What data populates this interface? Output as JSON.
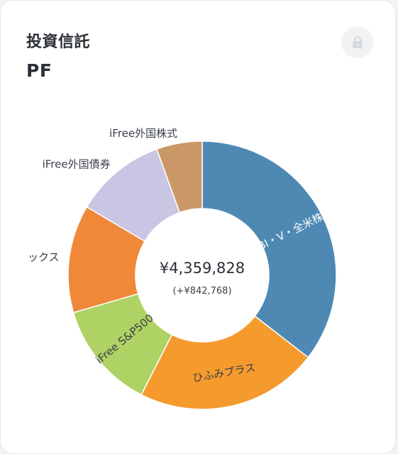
{
  "header": {
    "title": "投資信託",
    "subtitle": "PF"
  },
  "icons": {
    "lock": "lock-icon"
  },
  "summary": {
    "total": "¥4,359,828",
    "diff": "(+¥842,768)"
  },
  "colors": {
    "slice_blue": "#4e89b4",
    "slice_orange": "#f59b2e",
    "slice_green": "#aed264",
    "slice_dark_orange": "#f0883a",
    "slice_lavender": "#c9c5e3",
    "slice_tan": "#c99866"
  },
  "chart_data": {
    "type": "pie",
    "donut": true,
    "categories": [
      "SBI・V・全米株式",
      "ひふみプラス",
      "iFree S&P500",
      "ックス",
      "iFree外国債券",
      "iFree外国株式"
    ],
    "values": [
      35.5,
      22.0,
      13.0,
      13.0,
      11.0,
      5.5
    ],
    "labels": [
      "SBI・V・全米株式",
      "ひふみプラス",
      "iFree S&P500",
      "ックス",
      "iFree外国債券",
      "iFree外国株式"
    ],
    "legend": "none"
  }
}
